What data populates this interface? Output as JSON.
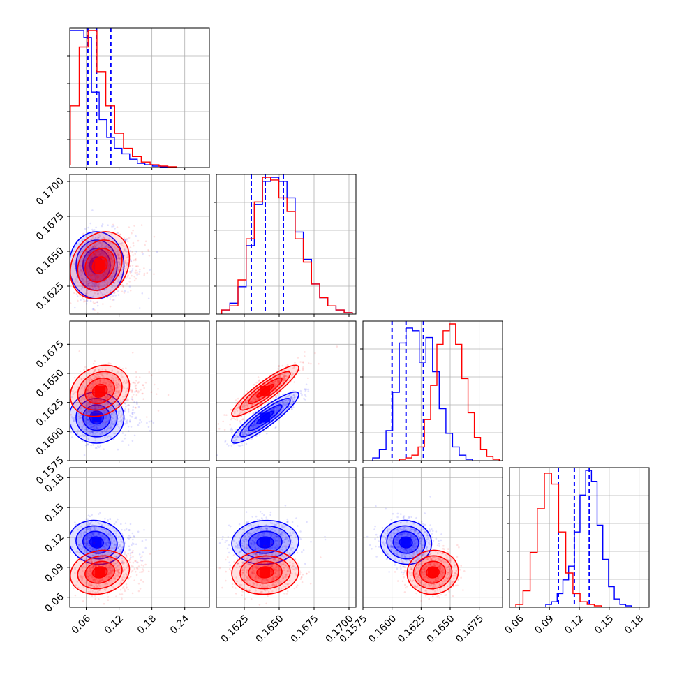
{
  "colors": {
    "blue": "#0000ff",
    "red": "#ff0000",
    "grid": "#b0b0b0"
  },
  "chart_data": {
    "type": "corner",
    "title": "",
    "grid": true,
    "params": [
      {
        "range": [
          0.03,
          0.285
        ],
        "ticks": [
          0.06,
          0.12,
          0.18,
          0.24
        ],
        "tick_labels": [
          "0.06",
          "0.12",
          "0.18",
          "0.24"
        ]
      },
      {
        "range": [
          0.1605,
          0.1705
        ],
        "ticks": [
          0.1625,
          0.165,
          0.1675,
          0.17
        ],
        "tick_labels": [
          "0.1625",
          "0.1650",
          "0.1675",
          "0.1700"
        ]
      },
      {
        "range": [
          0.1575,
          0.1695
        ],
        "ticks": [
          0.1575,
          0.16,
          0.1625,
          0.165,
          0.1675
        ],
        "tick_labels": [
          "0.1575",
          "0.1600",
          "0.1625",
          "0.1650",
          "0.1675"
        ]
      },
      {
        "range": [
          0.05,
          0.19
        ],
        "ticks": [
          0.06,
          0.09,
          0.12,
          0.15,
          0.18
        ],
        "tick_labels": [
          "0.06",
          "0.09",
          "0.12",
          "0.15",
          "0.18"
        ]
      }
    ],
    "series": [
      {
        "name": "",
        "color": "blue",
        "quantiles": [
          [
            0.063,
            0.079,
            0.105
          ],
          [
            0.163,
            0.164,
            0.1653
          ],
          [
            0.16,
            0.1612,
            0.1627
          ],
          [
            0.099,
            0.115,
            0.13
          ]
        ],
        "means": [
          0.079,
          0.164,
          0.1612,
          0.115
        ],
        "sigmas": [
          0.025,
          0.0012,
          0.0011,
          0.011
        ],
        "correlations": [
          [
            0,
            0.1
          ],
          [
            0,
            0.2
          ],
          [
            1,
            2,
            0.9
          ],
          [
            0,
            3,
            -0.1
          ],
          [
            1,
            3,
            0.05
          ],
          [
            2,
            3,
            -0.05
          ]
        ],
        "histograms": [
          [
            0.02,
            1.0,
            1.0,
            0.95,
            0.55,
            0.35,
            0.22,
            0.14,
            0.1,
            0.06,
            0.03,
            0.02,
            0.01,
            0.005
          ],
          [
            0.03,
            0.08,
            0.2,
            0.5,
            0.8,
            0.97,
            1.0,
            0.97,
            0.85,
            0.6,
            0.4,
            0.22,
            0.12,
            0.06,
            0.03,
            0.01
          ],
          [
            0.02,
            0.08,
            0.22,
            0.5,
            0.86,
            0.97,
            0.95,
            0.72,
            0.9,
            0.65,
            0.38,
            0.2,
            0.1,
            0.04,
            0.01
          ],
          [
            0.02,
            0.04,
            0.1,
            0.2,
            0.3,
            0.55,
            0.82,
            1.0,
            0.92,
            0.6,
            0.35,
            0.15,
            0.06,
            0.02,
            0.01
          ]
        ]
      },
      {
        "name": "",
        "color": "red",
        "quantiles": null,
        "means": [
          0.085,
          0.164,
          0.1635,
          0.085
        ],
        "sigmas": [
          0.027,
          0.0012,
          0.0011,
          0.011
        ],
        "correlations": [
          [
            0,
            1,
            0.2
          ],
          [
            0,
            2,
            0.2
          ],
          [
            1,
            2,
            0.9
          ],
          [
            0,
            3,
            0.15
          ],
          [
            1,
            3,
            0.05
          ],
          [
            2,
            3,
            0.05
          ]
        ],
        "histograms": [
          [
            0.02,
            0.45,
            0.88,
            1.0,
            0.7,
            0.45,
            0.25,
            0.14,
            0.08,
            0.04,
            0.02,
            0.01,
            0.005
          ],
          [
            0.03,
            0.06,
            0.25,
            0.55,
            0.82,
            1.0,
            0.98,
            0.85,
            0.75,
            0.55,
            0.38,
            0.22,
            0.12,
            0.06,
            0.03,
            0.01
          ],
          [
            0.01,
            0.02,
            0.04,
            0.1,
            0.3,
            0.55,
            0.85,
            0.95,
            1.0,
            0.85,
            0.6,
            0.35,
            0.17,
            0.08,
            0.03,
            0.01
          ],
          [
            0.02,
            0.12,
            0.4,
            0.72,
            0.98,
            0.9,
            0.55,
            0.25,
            0.1,
            0.04,
            0.02,
            0.01
          ]
        ]
      }
    ]
  }
}
